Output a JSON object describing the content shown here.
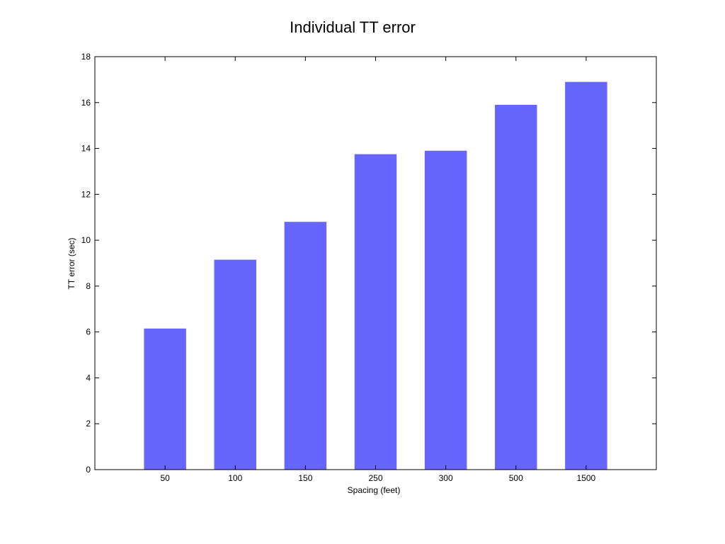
{
  "chart_data": {
    "type": "bar",
    "title": "Individual TT error",
    "xlabel": "Spacing (feet)",
    "ylabel": "TT error (sec)",
    "categories": [
      "50",
      "100",
      "150",
      "250",
      "300",
      "500",
      "1500"
    ],
    "values": [
      6.15,
      9.15,
      10.8,
      13.75,
      13.9,
      15.9,
      16.9
    ],
    "ylim": [
      0,
      18
    ],
    "yticks": [
      0,
      2,
      4,
      6,
      8,
      10,
      12,
      14,
      16,
      18
    ],
    "bar_color": "#6666ff",
    "grid": false,
    "legend": "none"
  }
}
